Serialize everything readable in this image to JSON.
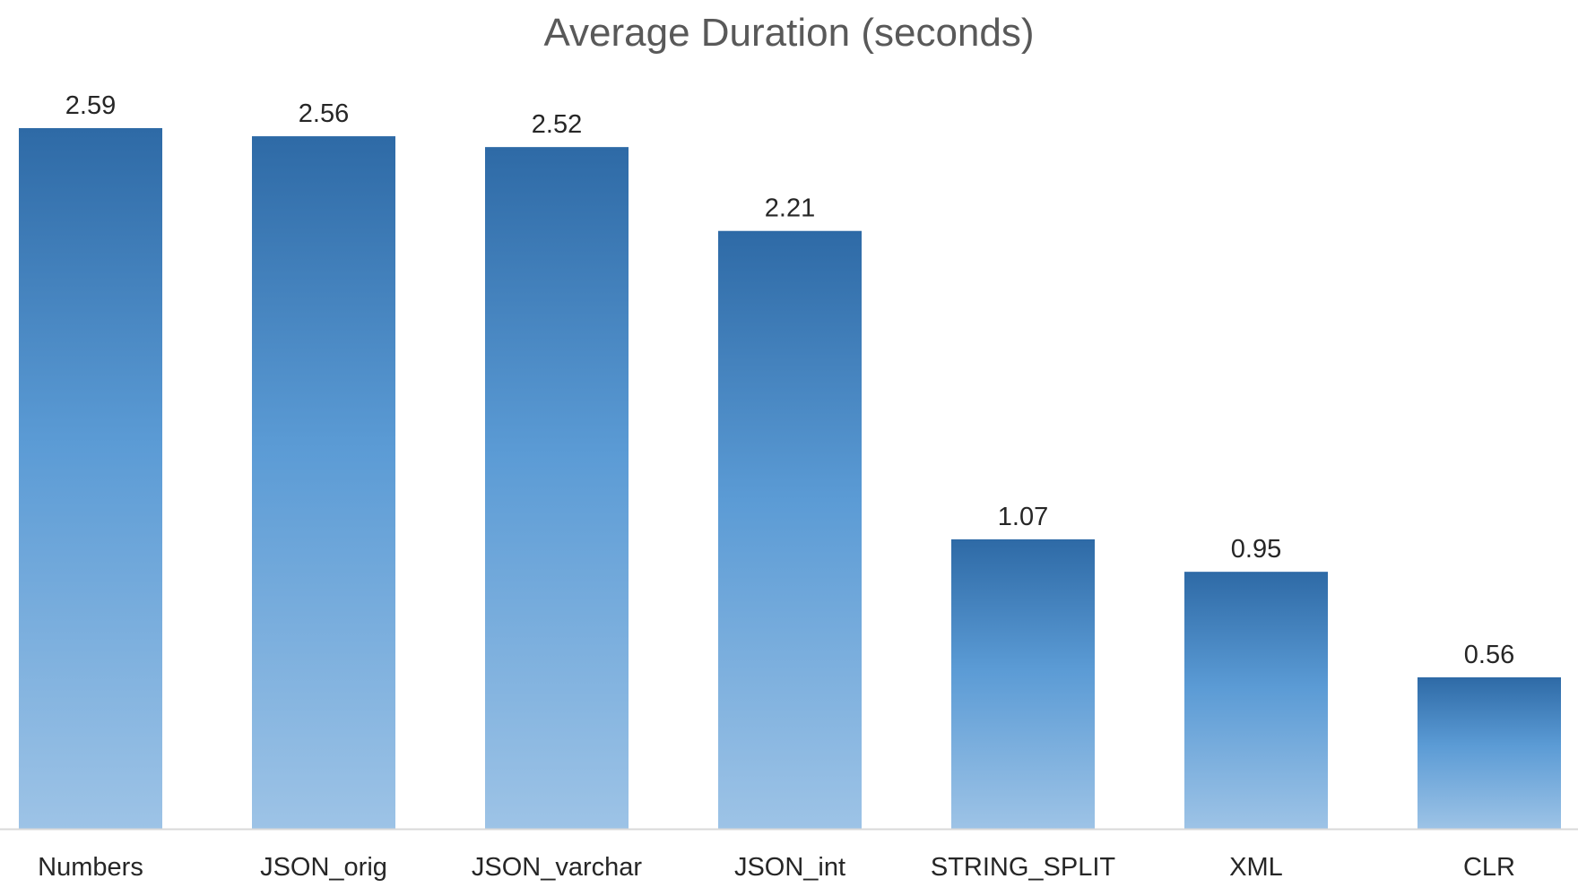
{
  "chart_data": {
    "type": "bar",
    "title": "Average Duration (seconds)",
    "categories": [
      "Numbers",
      "JSON_orig",
      "JSON_varchar",
      "JSON_int",
      "STRING_SPLIT",
      "XML",
      "CLR"
    ],
    "values": [
      2.59,
      2.56,
      2.52,
      2.21,
      1.07,
      0.95,
      0.56
    ],
    "data_labels": [
      "2.59",
      "2.56",
      "2.52",
      "2.21",
      "1.07",
      "0.95",
      "0.56"
    ],
    "xlabel": "",
    "ylabel": "",
    "ylim": [
      0,
      2.59
    ],
    "grid": false,
    "legend": "none",
    "colors": {
      "bar_top": "#2E6AA6",
      "bar_mid": "#5B9BD5",
      "bar_bottom": "#9DC3E6",
      "axis": "#D9D9D9"
    }
  }
}
